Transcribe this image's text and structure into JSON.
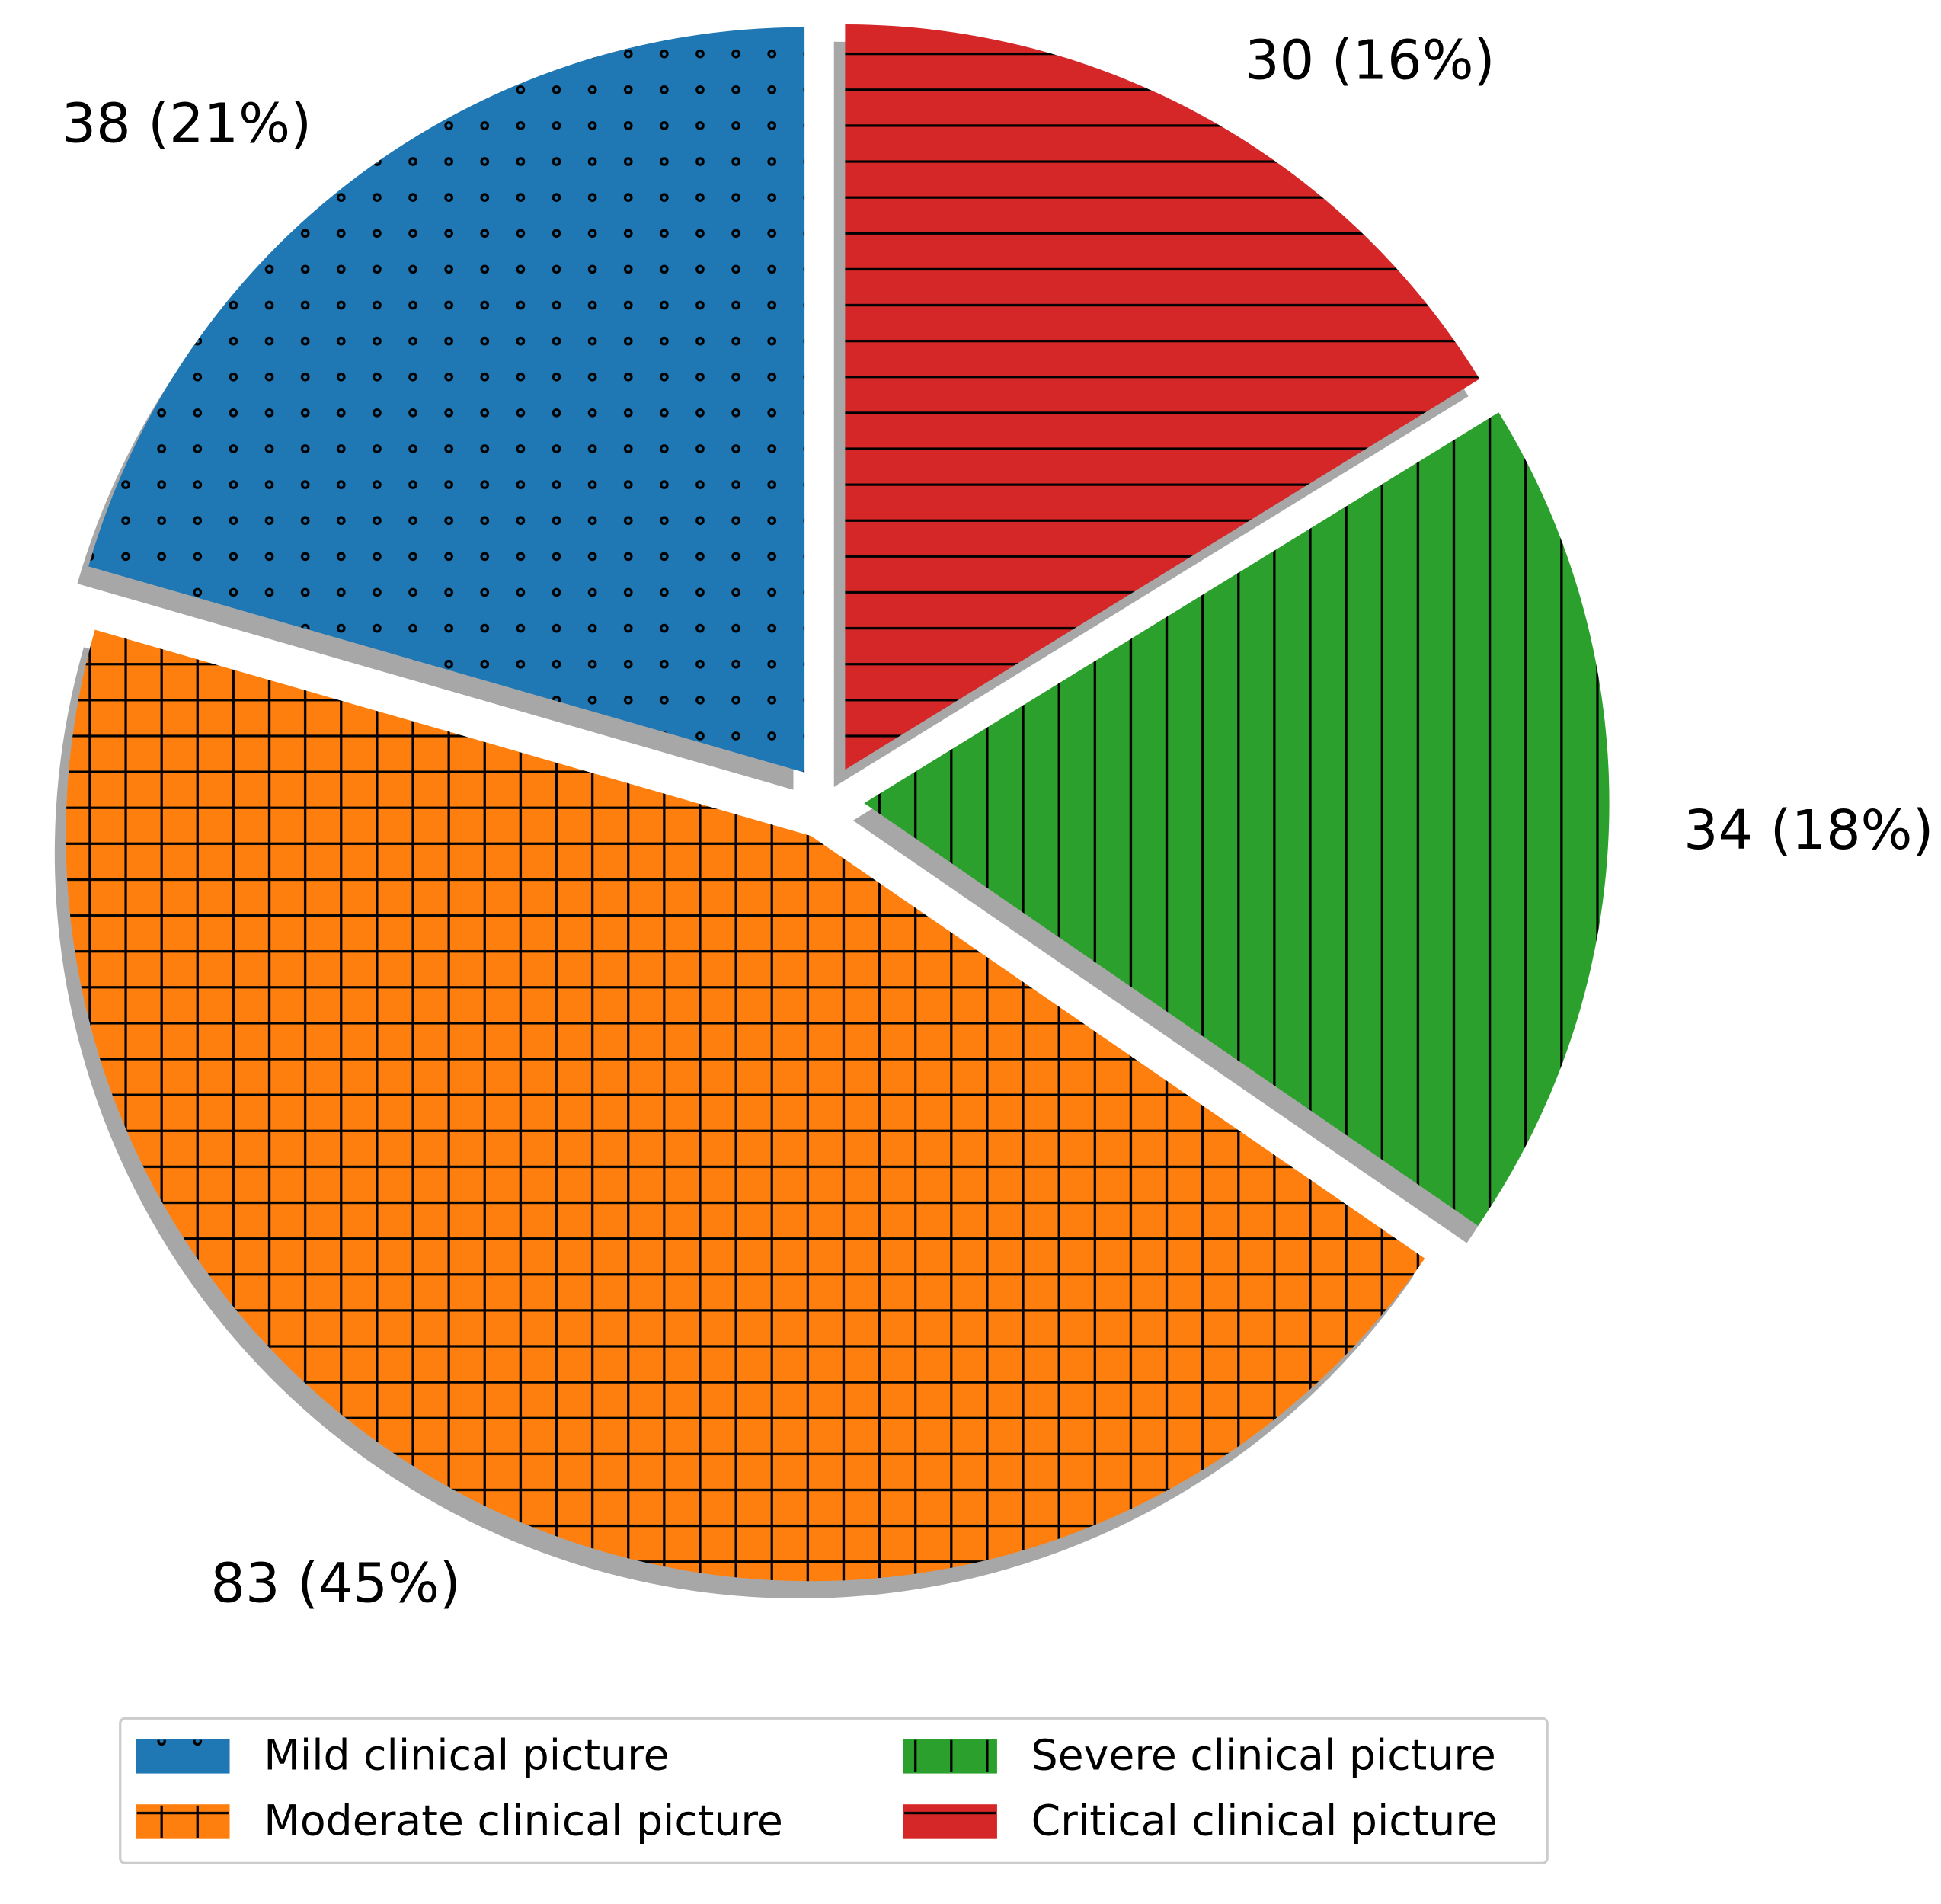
{
  "chart_data": {
    "type": "pie",
    "categories": [
      "Mild clinical picture",
      "Moderate clinical picture",
      "Severe clinical picture",
      "Critical clinical picture"
    ],
    "values": [
      38,
      83,
      34,
      30
    ],
    "value_labels": [
      "38 (21%)",
      "83 (45%)",
      "34 (18%)",
      "30 (16%)"
    ],
    "colors": [
      "#1f77b4",
      "#ff7f0e",
      "#2ca02c",
      "#d62728"
    ],
    "hatches": [
      "dots",
      "grid",
      "vertical",
      "horizontal"
    ],
    "legend": "bottom"
  }
}
